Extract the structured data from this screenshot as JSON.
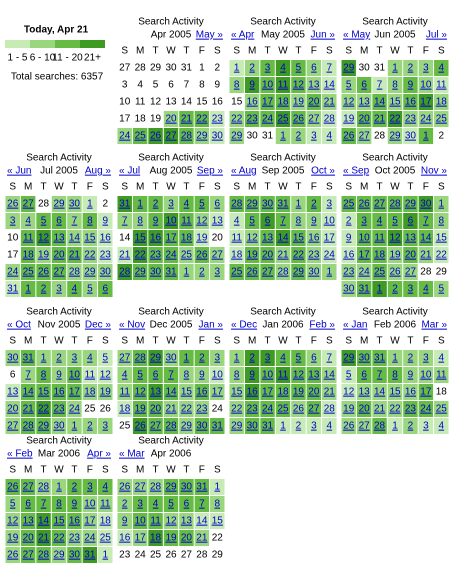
{
  "today": "Today, Apr 21",
  "legend": {
    "labels": [
      "1 - 5",
      "6 - 10",
      "11 - 20",
      "21+"
    ],
    "colors": [
      "#c6ebb4",
      "#9ad67c",
      "#66bb43",
      "#3f9a22"
    ]
  },
  "total": "Total searches: 6357",
  "calendar_title": "Search Activity",
  "weekdays": [
    "S",
    "M",
    "T",
    "W",
    "T",
    "F",
    "S"
  ],
  "months": [
    {
      "label": "Apr 2005",
      "next": "May »",
      "weeks": [
        [
          27,
          28,
          29,
          30,
          31,
          1,
          2
        ],
        [
          3,
          4,
          5,
          6,
          7,
          8,
          9
        ],
        [
          10,
          11,
          12,
          13,
          14,
          15,
          16
        ],
        [
          17,
          18,
          19,
          20,
          21,
          22,
          23
        ],
        [
          24,
          25,
          26,
          27,
          28,
          29,
          30
        ]
      ],
      "levels": [
        [
          0,
          0,
          0,
          0,
          0,
          0,
          0
        ],
        [
          0,
          0,
          0,
          0,
          0,
          0,
          0
        ],
        [
          0,
          0,
          0,
          0,
          0,
          0,
          0
        ],
        [
          0,
          0,
          0,
          2,
          3,
          3,
          1
        ],
        [
          2,
          3,
          4,
          4,
          3,
          2,
          1
        ]
      ]
    },
    {
      "prev": "« Apr",
      "label": "May 2005",
      "next": "Jun »",
      "weeks": [
        [
          1,
          2,
          3,
          4,
          5,
          6,
          7
        ],
        [
          8,
          9,
          10,
          11,
          12,
          13,
          14
        ],
        [
          15,
          16,
          17,
          18,
          19,
          20,
          21
        ],
        [
          22,
          23,
          24,
          25,
          26,
          27,
          28
        ],
        [
          29,
          30,
          31,
          1,
          2,
          3,
          4
        ]
      ],
      "levels": [
        [
          1,
          2,
          3,
          4,
          3,
          2,
          1
        ],
        [
          2,
          4,
          3,
          4,
          3,
          2,
          1
        ],
        [
          0,
          2,
          3,
          3,
          2,
          3,
          2
        ],
        [
          2,
          3,
          3,
          4,
          3,
          2,
          1
        ],
        [
          2,
          0,
          0,
          2,
          2,
          1,
          1
        ]
      ]
    },
    {
      "prev": "« May",
      "label": "Jun 2005",
      "next": "Jul »",
      "weeks": [
        [
          29,
          30,
          31,
          1,
          2,
          3,
          4
        ],
        [
          5,
          6,
          7,
          8,
          9,
          10,
          11
        ],
        [
          12,
          13,
          14,
          15,
          16,
          17,
          18
        ],
        [
          19,
          20,
          21,
          22,
          23,
          24,
          25
        ],
        [
          26,
          27,
          28,
          29,
          30,
          1,
          2
        ]
      ],
      "levels": [
        [
          4,
          0,
          0,
          2,
          2,
          2,
          3
        ],
        [
          2,
          3,
          1,
          2,
          3,
          2,
          1
        ],
        [
          2,
          2,
          3,
          2,
          3,
          4,
          2
        ],
        [
          1,
          3,
          3,
          4,
          2,
          2,
          2
        ],
        [
          3,
          2,
          0,
          2,
          1,
          3,
          0
        ]
      ]
    },
    {
      "prev": "« Jun",
      "label": "Jul 2005",
      "next": "Aug »",
      "weeks": [
        [
          26,
          27,
          28,
          29,
          30,
          1,
          2
        ],
        [
          3,
          4,
          5,
          6,
          7,
          8,
          9
        ],
        [
          10,
          11,
          12,
          13,
          14,
          15,
          16
        ],
        [
          17,
          18,
          19,
          20,
          21,
          22,
          23
        ],
        [
          24,
          25,
          26,
          27,
          28,
          29,
          30
        ],
        [
          31,
          1,
          2,
          3,
          4,
          5,
          6
        ]
      ],
      "levels": [
        [
          2,
          3,
          0,
          2,
          2,
          1,
          0
        ],
        [
          2,
          2,
          3,
          3,
          2,
          3,
          1
        ],
        [
          0,
          3,
          4,
          3,
          2,
          2,
          1
        ],
        [
          0,
          3,
          2,
          3,
          3,
          2,
          1
        ],
        [
          2,
          3,
          3,
          3,
          2,
          2,
          2
        ],
        [
          1,
          3,
          3,
          2,
          3,
          2,
          3
        ]
      ]
    },
    {
      "prev": "« Jul",
      "label": "Aug 2005",
      "next": "Sep »",
      "weeks": [
        [
          31,
          1,
          2,
          3,
          4,
          5,
          6
        ],
        [
          7,
          8,
          9,
          10,
          11,
          12,
          13
        ],
        [
          14,
          15,
          16,
          17,
          18,
          19,
          20
        ],
        [
          21,
          22,
          23,
          24,
          25,
          26,
          27
        ],
        [
          28,
          29,
          30,
          31,
          1,
          2,
          3
        ]
      ],
      "levels": [
        [
          4,
          3,
          3,
          2,
          3,
          3,
          2
        ],
        [
          2,
          2,
          3,
          4,
          3,
          2,
          1
        ],
        [
          0,
          4,
          4,
          3,
          3,
          1,
          0
        ],
        [
          1,
          4,
          3,
          3,
          2,
          3,
          2
        ],
        [
          4,
          3,
          3,
          3,
          2,
          2,
          2
        ]
      ]
    },
    {
      "prev": "« Aug",
      "label": "Sep 2005",
      "next": "Oct »",
      "weeks": [
        [
          28,
          29,
          30,
          31,
          1,
          2,
          3
        ],
        [
          4,
          5,
          6,
          7,
          8,
          9,
          10
        ],
        [
          11,
          12,
          13,
          14,
          15,
          16,
          17
        ],
        [
          18,
          19,
          20,
          21,
          22,
          23,
          24
        ],
        [
          25,
          26,
          27,
          28,
          29,
          30,
          1
        ]
      ],
      "levels": [
        [
          3,
          3,
          3,
          3,
          2,
          3,
          1
        ],
        [
          1,
          3,
          4,
          3,
          2,
          2,
          1
        ],
        [
          1,
          2,
          3,
          4,
          3,
          2,
          1
        ],
        [
          1,
          3,
          3,
          2,
          3,
          2,
          1
        ],
        [
          3,
          3,
          3,
          2,
          3,
          2,
          2
        ]
      ]
    },
    {
      "prev": "« Sep",
      "label": "Oct 2005",
      "next": "Nov »",
      "weeks": [
        [
          25,
          26,
          27,
          28,
          29,
          30,
          1
        ],
        [
          2,
          3,
          4,
          5,
          6,
          7,
          8
        ],
        [
          9,
          10,
          11,
          12,
          13,
          14,
          15
        ],
        [
          16,
          17,
          18,
          19,
          20,
          21,
          22
        ],
        [
          23,
          24,
          25,
          26,
          27,
          28,
          29
        ],
        [
          30,
          31,
          1,
          2,
          3,
          4,
          5
        ]
      ],
      "levels": [
        [
          3,
          3,
          3,
          3,
          3,
          4,
          2
        ],
        [
          1,
          3,
          3,
          3,
          4,
          3,
          2
        ],
        [
          1,
          3,
          3,
          4,
          3,
          3,
          1
        ],
        [
          1,
          3,
          3,
          2,
          3,
          2,
          1
        ],
        [
          2,
          2,
          3,
          2,
          2,
          0,
          0
        ],
        [
          2,
          3,
          4,
          3,
          3,
          3,
          2
        ]
      ]
    },
    {
      "prev": "« Oct",
      "label": "Nov 2005",
      "next": "Dec »",
      "weeks": [
        [
          30,
          31,
          1,
          2,
          3,
          4,
          5
        ],
        [
          6,
          7,
          8,
          9,
          10,
          11,
          12
        ],
        [
          13,
          14,
          15,
          16,
          17,
          18,
          19
        ],
        [
          20,
          21,
          22,
          23,
          24,
          25,
          26
        ],
        [
          27,
          28,
          29,
          30,
          1,
          2,
          3
        ]
      ],
      "levels": [
        [
          2,
          3,
          2,
          2,
          2,
          2,
          1
        ],
        [
          0,
          2,
          3,
          2,
          3,
          1,
          1
        ],
        [
          1,
          3,
          3,
          3,
          3,
          2,
          2
        ],
        [
          2,
          3,
          4,
          3,
          2,
          0,
          0
        ],
        [
          2,
          3,
          3,
          2,
          2,
          2,
          2
        ]
      ]
    },
    {
      "prev": "« Nov",
      "label": "Dec 2005",
      "next": "Jan »",
      "weeks": [
        [
          27,
          28,
          29,
          30,
          1,
          2,
          3
        ],
        [
          4,
          5,
          6,
          7,
          8,
          9,
          10
        ],
        [
          11,
          12,
          13,
          14,
          15,
          16,
          17
        ],
        [
          18,
          19,
          20,
          21,
          22,
          23,
          24
        ],
        [
          25,
          26,
          27,
          28,
          29,
          30,
          31
        ]
      ],
      "levels": [
        [
          2,
          3,
          4,
          2,
          3,
          3,
          2
        ],
        [
          2,
          3,
          3,
          3,
          2,
          2,
          1
        ],
        [
          2,
          3,
          4,
          3,
          2,
          3,
          2
        ],
        [
          1,
          3,
          3,
          2,
          2,
          2,
          0
        ],
        [
          0,
          4,
          3,
          3,
          2,
          3,
          3
        ]
      ]
    },
    {
      "prev": "« Dec",
      "label": "Jan 2006",
      "next": "Feb »",
      "weeks": [
        [
          1,
          2,
          3,
          4,
          5,
          6,
          7
        ],
        [
          8,
          9,
          10,
          11,
          12,
          13,
          14
        ],
        [
          15,
          16,
          17,
          18,
          19,
          20,
          21
        ],
        [
          22,
          23,
          24,
          25,
          26,
          27,
          28
        ],
        [
          29,
          30,
          31,
          1,
          2,
          3,
          4
        ]
      ],
      "levels": [
        [
          2,
          4,
          4,
          3,
          3,
          2,
          1
        ],
        [
          2,
          4,
          3,
          4,
          3,
          3,
          2
        ],
        [
          2,
          4,
          3,
          3,
          3,
          3,
          2
        ],
        [
          2,
          3,
          3,
          3,
          2,
          3,
          1
        ],
        [
          2,
          3,
          3,
          1,
          1,
          1,
          1
        ]
      ]
    },
    {
      "prev": "« Jan",
      "label": "Feb 2006",
      "next": "Mar »",
      "weeks": [
        [
          29,
          30,
          31,
          1,
          2,
          3,
          4
        ],
        [
          5,
          6,
          7,
          8,
          9,
          10,
          11
        ],
        [
          12,
          13,
          14,
          15,
          16,
          17,
          18
        ],
        [
          19,
          20,
          21,
          22,
          23,
          24,
          25
        ],
        [
          26,
          27,
          28,
          1,
          2,
          3,
          4
        ]
      ],
      "levels": [
        [
          4,
          3,
          3,
          2,
          2,
          2,
          1
        ],
        [
          1,
          3,
          3,
          3,
          2,
          2,
          2
        ],
        [
          1,
          2,
          2,
          2,
          2,
          3,
          0
        ],
        [
          2,
          3,
          2,
          2,
          3,
          3,
          2
        ],
        [
          2,
          2,
          3,
          1,
          2,
          1,
          1
        ]
      ]
    },
    {
      "prev": "« Feb",
      "label": "Mar 2006",
      "next": "Apr »",
      "weeks": [
        [
          26,
          27,
          28,
          1,
          2,
          3,
          4
        ],
        [
          5,
          6,
          7,
          8,
          9,
          10,
          11
        ],
        [
          12,
          13,
          14,
          15,
          16,
          17,
          18
        ],
        [
          19,
          20,
          21,
          22,
          23,
          24,
          25
        ],
        [
          26,
          27,
          28,
          29,
          30,
          31,
          1
        ]
      ],
      "levels": [
        [
          3,
          3,
          2,
          2,
          3,
          3,
          3
        ],
        [
          2,
          3,
          3,
          3,
          3,
          2,
          2
        ],
        [
          2,
          3,
          4,
          3,
          3,
          2,
          1
        ],
        [
          2,
          3,
          4,
          3,
          2,
          2,
          1
        ],
        [
          2,
          3,
          3,
          2,
          3,
          4,
          1
        ]
      ]
    },
    {
      "prev": "« Mar",
      "label": "Apr 2006",
      "weeks": [
        [
          26,
          27,
          28,
          29,
          30,
          31,
          1
        ],
        [
          2,
          3,
          4,
          5,
          6,
          7,
          8
        ],
        [
          9,
          10,
          11,
          12,
          13,
          14,
          15
        ],
        [
          16,
          17,
          18,
          19,
          20,
          21,
          22
        ],
        [
          23,
          24,
          25,
          26,
          27,
          28,
          29
        ]
      ],
      "levels": [
        [
          2,
          2,
          2,
          3,
          3,
          3,
          1
        ],
        [
          2,
          3,
          3,
          3,
          3,
          3,
          2
        ],
        [
          2,
          3,
          3,
          2,
          2,
          1,
          1
        ],
        [
          1,
          2,
          4,
          3,
          3,
          2,
          0
        ],
        [
          0,
          0,
          0,
          0,
          0,
          0,
          0
        ]
      ]
    }
  ]
}
